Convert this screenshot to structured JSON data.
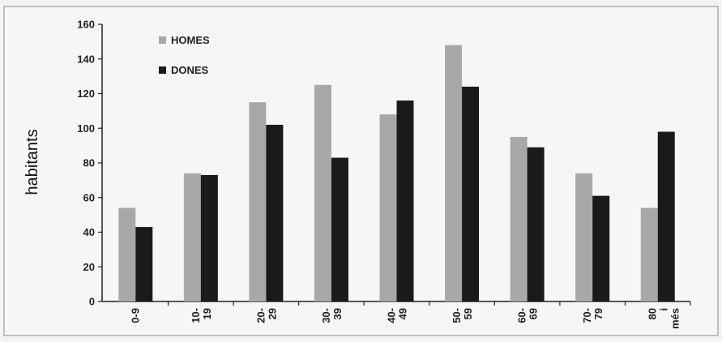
{
  "chart_data": {
    "type": "bar",
    "ylabel": "habitants",
    "ylim": [
      0,
      160
    ],
    "yticks": [
      0,
      20,
      40,
      60,
      80,
      100,
      120,
      140,
      160
    ],
    "categories": [
      "0-9",
      "10- 19",
      "20- 29",
      "30- 39",
      "40- 49",
      "50- 59",
      "60- 69",
      "70- 79",
      "80 i més"
    ],
    "series": [
      {
        "name": "HOMES",
        "color": "#a8a8a8",
        "values": [
          54,
          74,
          115,
          125,
          108,
          148,
          95,
          74,
          54
        ]
      },
      {
        "name": "DONES",
        "color": "#1a1a1a",
        "values": [
          43,
          73,
          102,
          83,
          116,
          124,
          89,
          61,
          98
        ]
      }
    ],
    "legend_position": "top-left",
    "grid": false
  }
}
